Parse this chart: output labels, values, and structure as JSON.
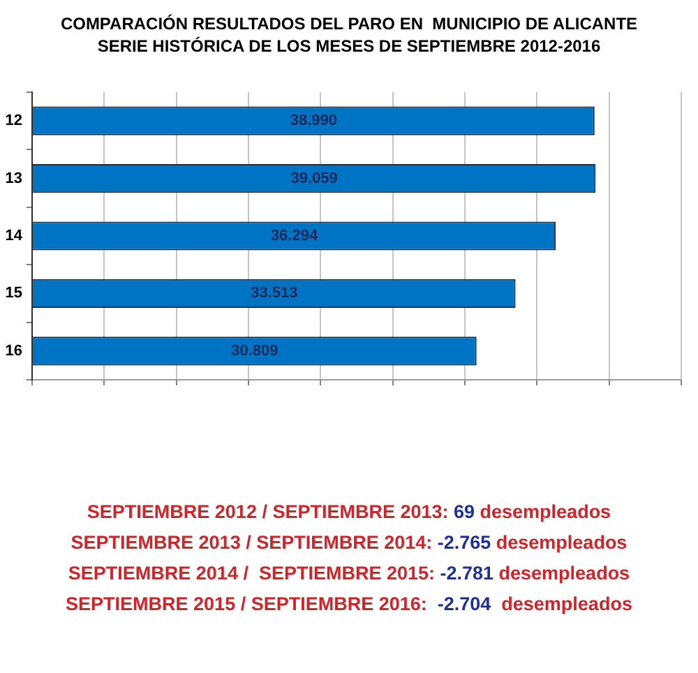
{
  "chart_data": {
    "type": "bar",
    "orientation": "horizontal",
    "title": "COMPARACIÓN RESULTADOS DEL PARO EN  MUNICIPIO DE ALICANTE",
    "subtitle": "SERIE HISTÓRICA DE LOS MESES DE SEPTIEMBRE 2012-2016",
    "categories": [
      "12",
      "13",
      "14",
      "15",
      "16"
    ],
    "values": [
      38990,
      39059,
      36294,
      33513,
      30809
    ],
    "value_labels": [
      "38.990",
      "39.059",
      "36.294",
      "33.513",
      "30.809"
    ],
    "color": "#0074c4",
    "xlim": [
      0,
      45000
    ],
    "xticks": [
      {
        "value": 0,
        "label": null
      },
      {
        "value": 5000,
        "label": null
      },
      {
        "value": 10000,
        "label": null
      },
      {
        "value": 15000,
        "label": null
      },
      {
        "value": 20000,
        "label": null
      },
      {
        "value": 25000,
        "label": null
      },
      {
        "value": 30000,
        "label": null
      },
      {
        "value": 35000,
        "label": null
      },
      {
        "value": 40000,
        "label": null
      },
      {
        "value": 45000,
        "label": null
      }
    ],
    "tick_labels": "y",
    "grid": "x",
    "annotations": [
      "SEPTIEMBRE 2012 / SEPTIEMBRE 2013: 69 desempleados",
      "SEPTIEMBRE 2013 / SEPTIEMBRE 2014: -2.765 desempleados",
      "SEPTIEMBRE 2014 /  SEPTIEMBRE 2015: -2.781 desempleados",
      "SEPTIEMBRE 2015 / SEPTIEMBRE 2016:  -2.704  desempleados"
    ]
  }
}
